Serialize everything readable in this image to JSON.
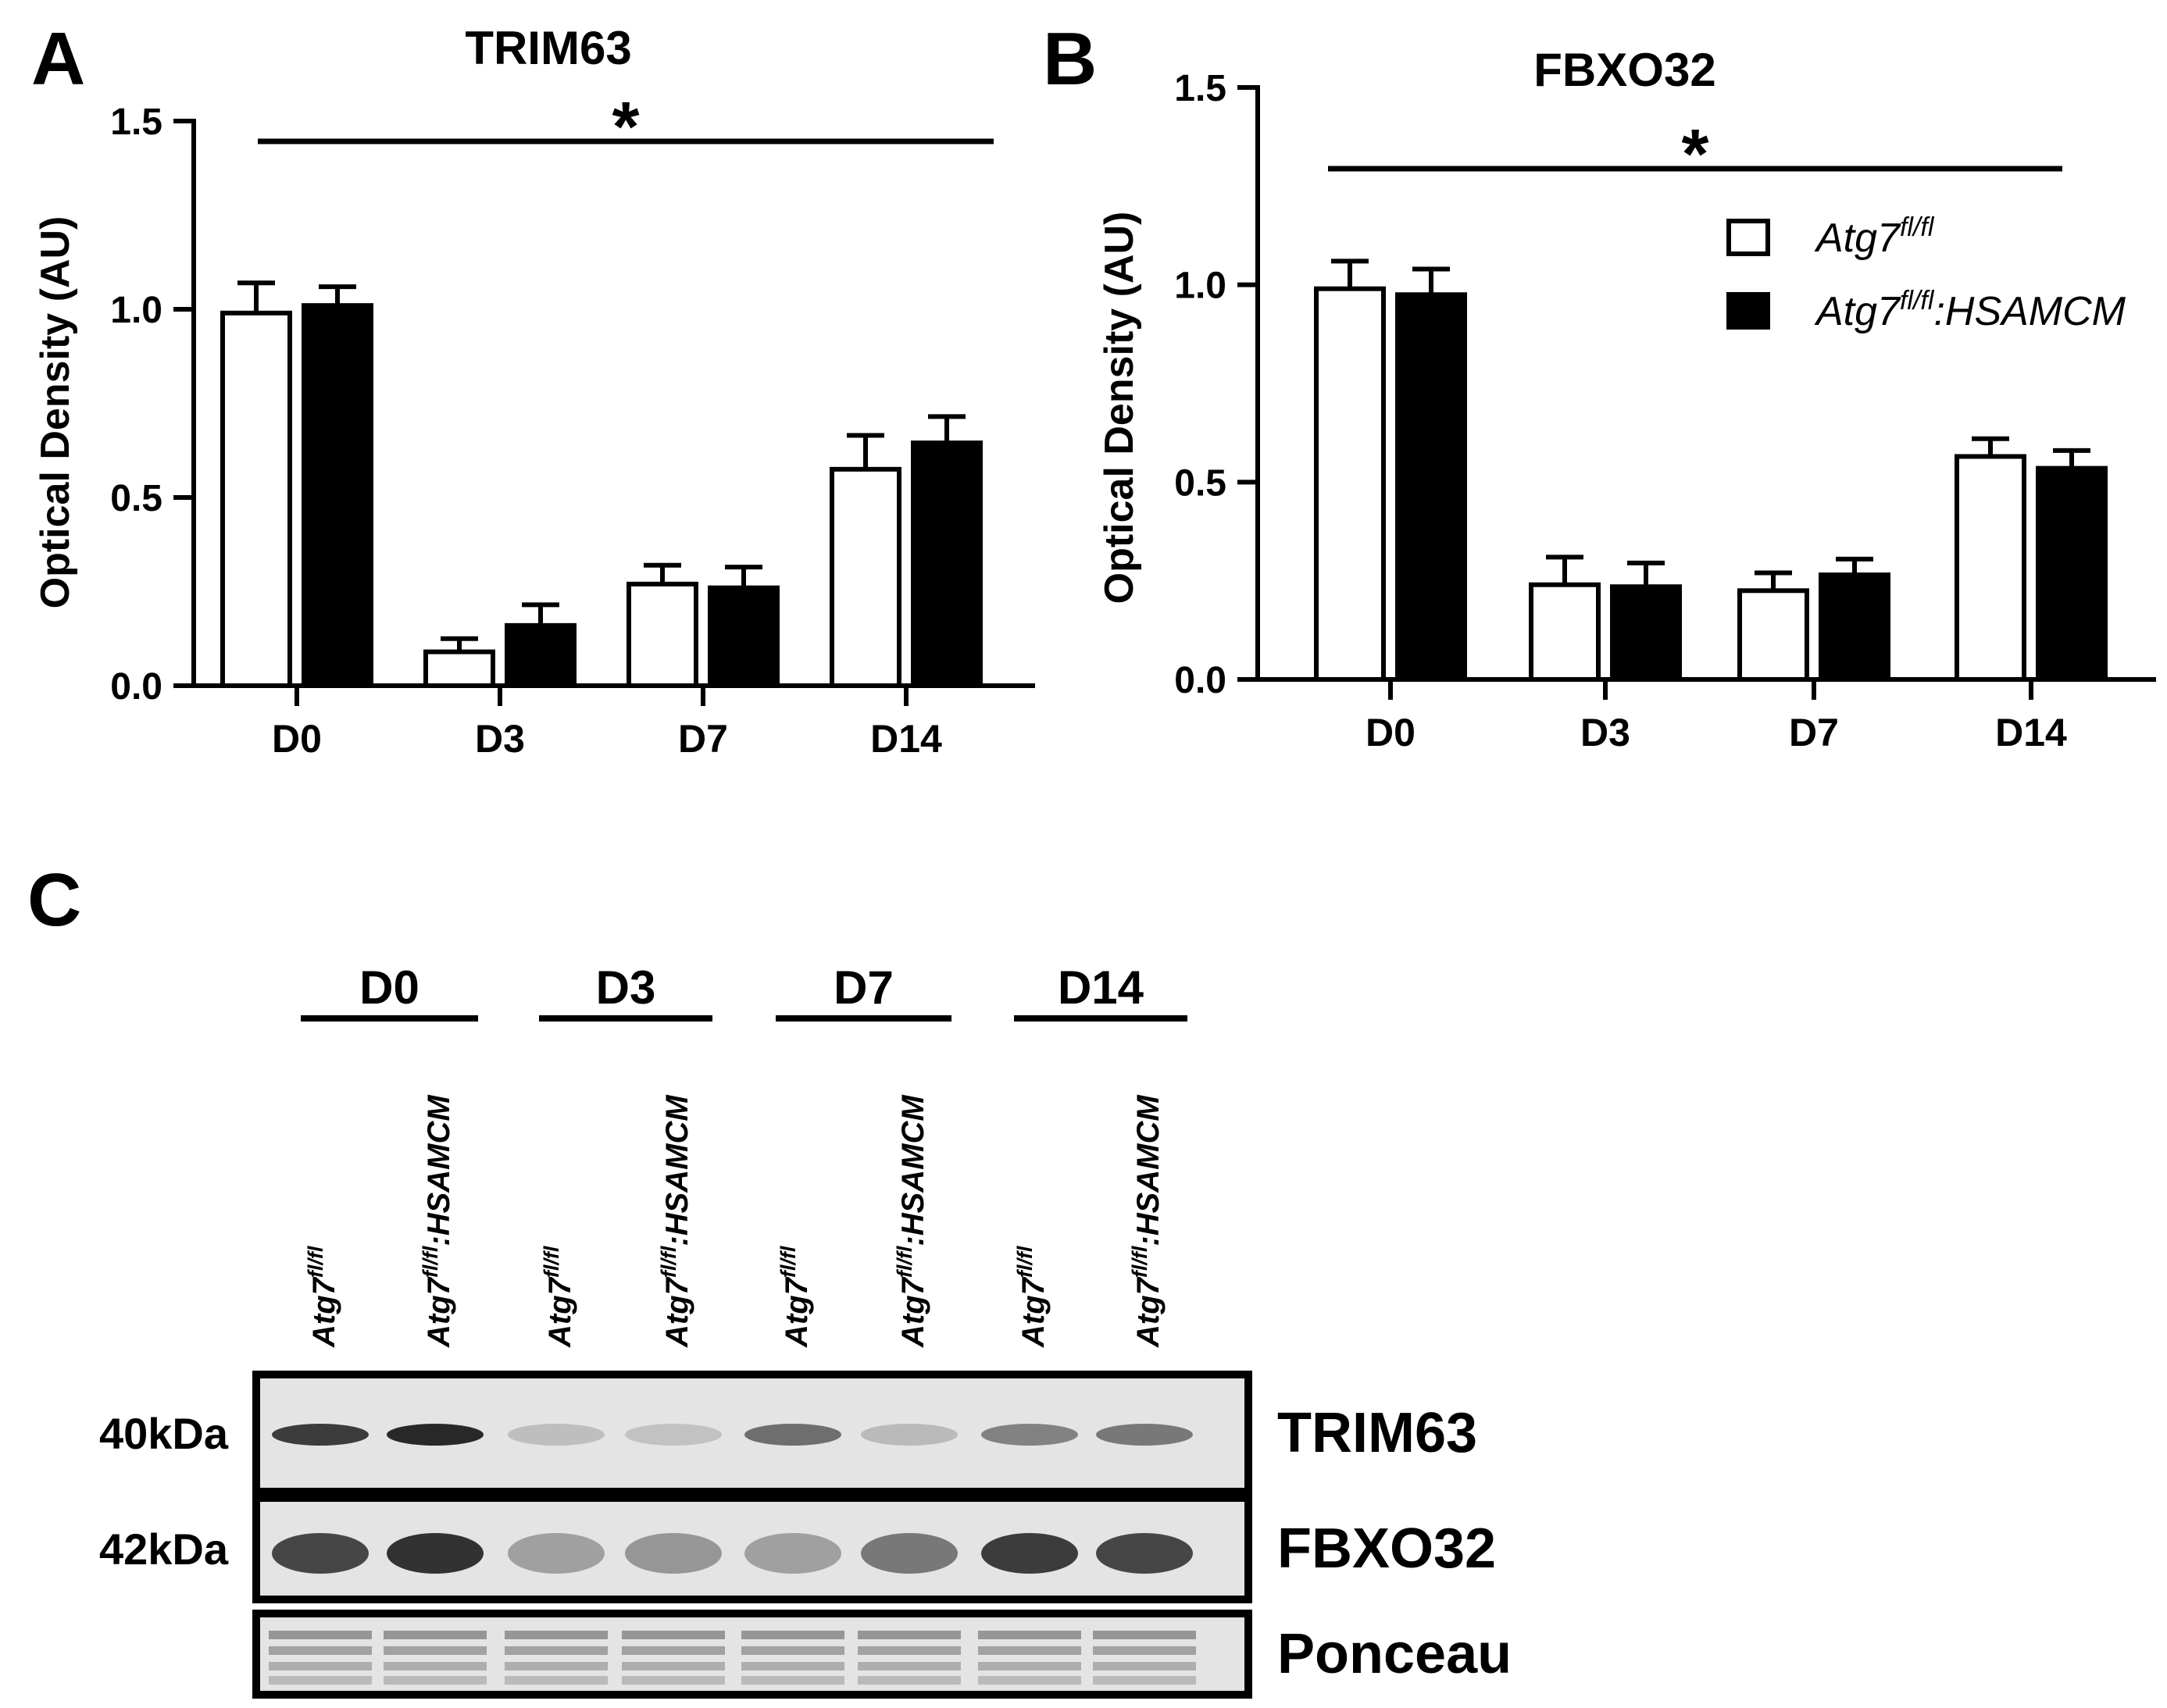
{
  "panels": [
    {
      "letter": "A"
    },
    {
      "letter": "B"
    },
    {
      "letter": "C"
    }
  ],
  "legend": {
    "position": "top-right of panel B",
    "entries": [
      {
        "base": "Atg7",
        "sup": "fl/fl",
        "suffix": "",
        "fill": "#ffffff"
      },
      {
        "base": "Atg7",
        "sup": "fl/fl",
        "suffix": ":HSAMCM",
        "fill": "#000000"
      }
    ]
  },
  "chart_data": [
    {
      "type": "bar",
      "panel": "A",
      "title": "TRIM63",
      "xlabel": "",
      "ylabel": "Optical Density (AU)",
      "ylim": [
        0,
        1.5
      ],
      "yticks": [
        "0.0",
        "0.5",
        "1.0",
        "1.5"
      ],
      "categories": [
        "D0",
        "D3",
        "D7",
        "D14"
      ],
      "significance": "*",
      "series": [
        {
          "name": "Atg7 fl/fl",
          "color": "#ffffff",
          "values": [
            0.99,
            0.09,
            0.27,
            0.575
          ],
          "errors": [
            0.08,
            0.035,
            0.05,
            0.09
          ]
        },
        {
          "name": "Atg7 fl/fl:HSAMCM",
          "color": "#000000",
          "values": [
            1.01,
            0.16,
            0.26,
            0.645
          ],
          "errors": [
            0.05,
            0.055,
            0.055,
            0.07
          ]
        }
      ]
    },
    {
      "type": "bar",
      "panel": "B",
      "title": "FBXO32",
      "xlabel": "",
      "ylabel": "Optical Density (AU)",
      "ylim": [
        0,
        1.5
      ],
      "yticks": [
        "0.0",
        "0.5",
        "1.0",
        "1.5"
      ],
      "categories": [
        "D0",
        "D3",
        "D7",
        "D14"
      ],
      "significance": "*",
      "series": [
        {
          "name": "Atg7 fl/fl",
          "color": "#ffffff",
          "values": [
            0.99,
            0.24,
            0.225,
            0.565
          ],
          "errors": [
            0.07,
            0.07,
            0.045,
            0.045
          ]
        },
        {
          "name": "Atg7 fl/fl:HSAMCM",
          "color": "#000000",
          "values": [
            0.975,
            0.235,
            0.265,
            0.535
          ],
          "errors": [
            0.065,
            0.06,
            0.04,
            0.045
          ]
        }
      ]
    }
  ],
  "blot": {
    "groups": [
      "D0",
      "D3",
      "D7",
      "D14"
    ],
    "lanes": [
      {
        "base": "Atg7",
        "sup": "fl/fl",
        "suffix": ""
      },
      {
        "base": "Atg7",
        "sup": "fl/fl",
        "suffix": ":HSAMCM"
      },
      {
        "base": "Atg7",
        "sup": "fl/fl",
        "suffix": ""
      },
      {
        "base": "Atg7",
        "sup": "fl/fl",
        "suffix": ":HSAMCM"
      },
      {
        "base": "Atg7",
        "sup": "fl/fl",
        "suffix": ""
      },
      {
        "base": "Atg7",
        "sup": "fl/fl",
        "suffix": ":HSAMCM"
      },
      {
        "base": "Atg7",
        "sup": "fl/fl",
        "suffix": ""
      },
      {
        "base": "Atg7",
        "sup": "fl/fl",
        "suffix": ":HSAMCM"
      }
    ],
    "rows": [
      {
        "name": "TRIM63",
        "marker": "40kDa",
        "intensity": [
          0.85,
          0.95,
          0.2,
          0.18,
          0.6,
          0.22,
          0.5,
          0.55
        ]
      },
      {
        "name": "FBXO32",
        "marker": "42kDa",
        "intensity": [
          0.8,
          0.9,
          0.35,
          0.4,
          0.35,
          0.55,
          0.85,
          0.8
        ]
      },
      {
        "name": "Ponceau",
        "marker": "",
        "intensity": [
          0.5,
          0.5,
          0.5,
          0.5,
          0.5,
          0.5,
          0.5,
          0.5
        ]
      }
    ]
  }
}
